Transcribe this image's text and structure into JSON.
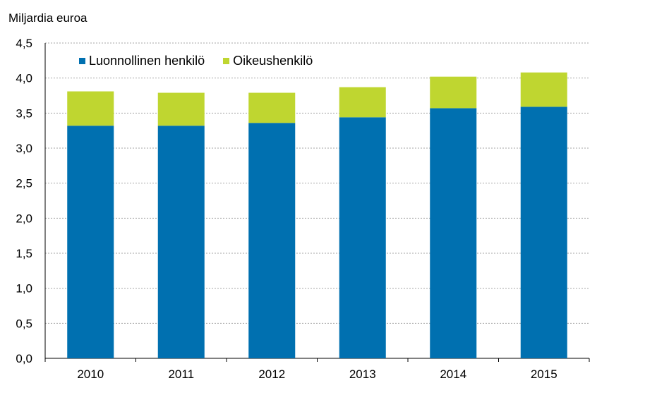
{
  "chart_data": {
    "type": "bar",
    "stacked": true,
    "unit_label": "Miljardia euroa",
    "categories": [
      "2010",
      "2011",
      "2012",
      "2013",
      "2014",
      "2015"
    ],
    "series": [
      {
        "name": "Luonnollinen henkilö",
        "color": "#0070b0",
        "values": [
          3.32,
          3.32,
          3.36,
          3.44,
          3.57,
          3.59
        ]
      },
      {
        "name": "Oikeushenkilö",
        "color": "#bfd630",
        "values": [
          0.49,
          0.47,
          0.43,
          0.43,
          0.45,
          0.49
        ]
      }
    ],
    "ylim": [
      0,
      4.5
    ],
    "yticks": [
      "0,0",
      "0,5",
      "1,0",
      "1,5",
      "2,0",
      "2,5",
      "3,0",
      "3,5",
      "4,0",
      "4,5"
    ],
    "grid": true,
    "legend_position": "top-left"
  }
}
